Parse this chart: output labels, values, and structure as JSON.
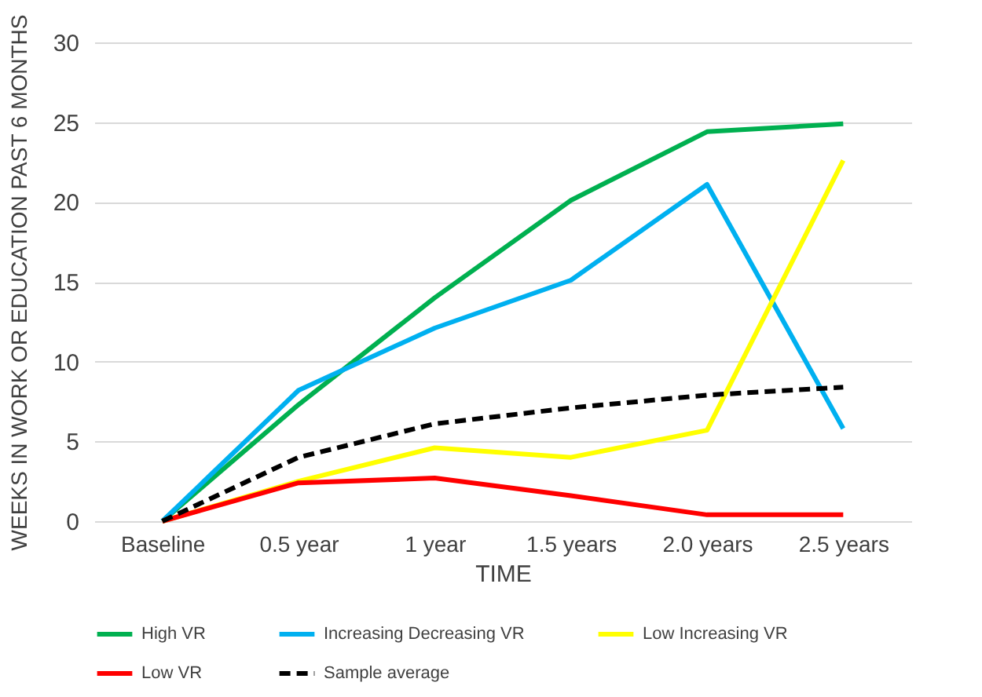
{
  "chart_data": {
    "type": "line",
    "xlabel": "TIME",
    "ylabel": "WEEKS IN WORK OR EDUCATION PAST 6 MONTHS",
    "categories": [
      "Baseline",
      "0.5 year",
      "1 year",
      "1.5 years",
      "2.0 years",
      "2.5 years"
    ],
    "ylim": [
      0,
      30
    ],
    "yticks": [
      0,
      5,
      10,
      15,
      20,
      25,
      30
    ],
    "grid": "y",
    "legend": "bottom",
    "marker": "none",
    "series": [
      {
        "name": "High VR",
        "color": "#00b050",
        "line_style": "solid",
        "values": [
          0,
          7.3,
          14.0,
          20.1,
          24.4,
          24.9
        ]
      },
      {
        "name": "Increasing Decreasing VR",
        "color": "#00b0f0",
        "line_style": "solid",
        "values": [
          0,
          8.2,
          12.1,
          15.1,
          21.1,
          5.8
        ]
      },
      {
        "name": "Low Increasing VR",
        "color": "#ffff00",
        "line_style": "solid",
        "values": [
          0,
          2.5,
          4.6,
          4.0,
          5.7,
          22.6
        ]
      },
      {
        "name": "Low VR",
        "color": "#ff0000",
        "line_style": "solid",
        "values": [
          0,
          2.4,
          2.7,
          1.6,
          0.4,
          0.4
        ]
      },
      {
        "name": "Sample average",
        "color": "#000000",
        "line_style": "dashed",
        "values": [
          0,
          4.0,
          6.1,
          7.1,
          7.9,
          8.4
        ]
      }
    ]
  }
}
